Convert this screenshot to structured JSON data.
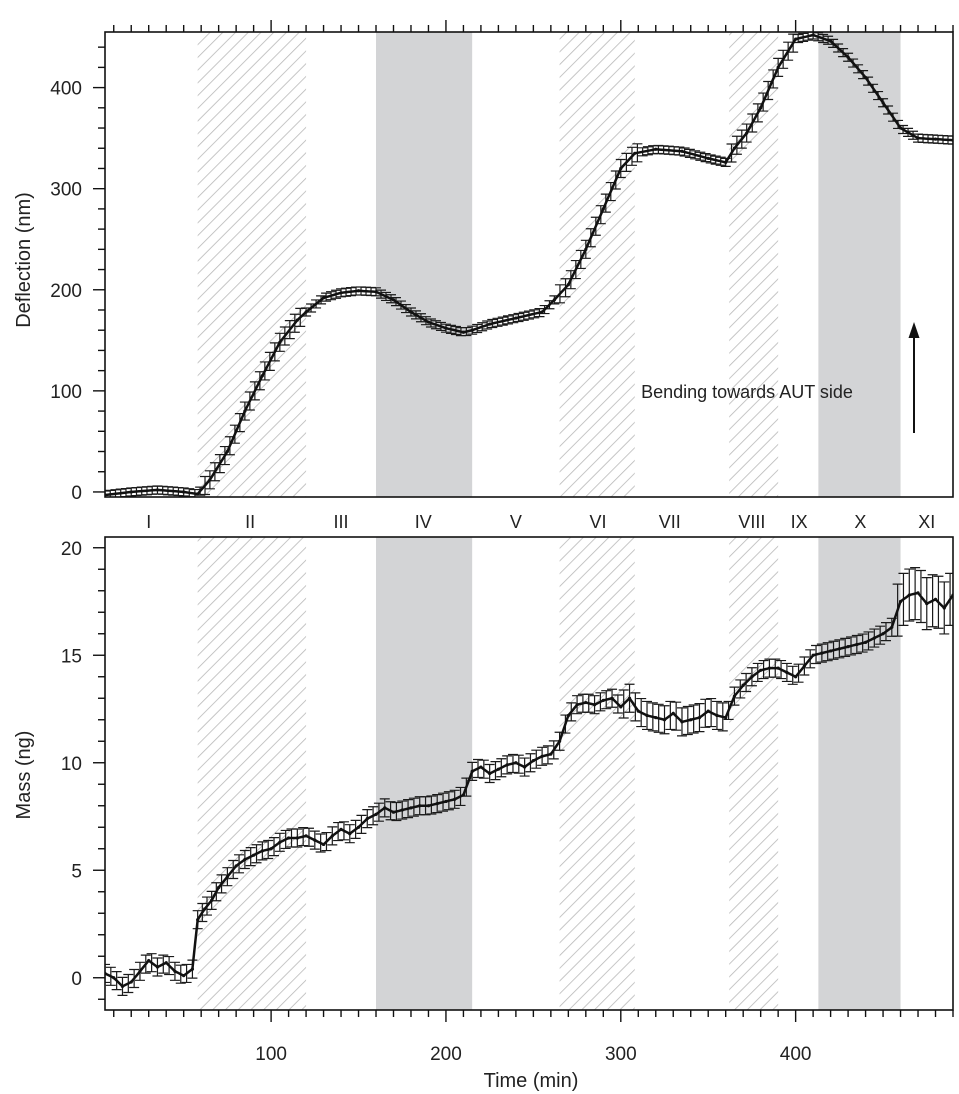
{
  "chart_data": [
    {
      "type": "line",
      "ylabel": "Deflection (nm)",
      "xlim": [
        5,
        490
      ],
      "ylim": [
        -5,
        455
      ],
      "yticks": [
        0,
        100,
        200,
        300,
        400
      ],
      "error_bars": true,
      "regions": [
        {
          "start": 58,
          "end": 120,
          "style": "hatched"
        },
        {
          "start": 160,
          "end": 215,
          "style": "gray"
        },
        {
          "start": 265,
          "end": 308,
          "style": "hatched"
        },
        {
          "start": 362,
          "end": 390,
          "style": "hatched"
        },
        {
          "start": 413,
          "end": 460,
          "style": "gray"
        }
      ],
      "annotation": "Bending towards AUT side",
      "series": [
        {
          "x": [
            5,
            20,
            35,
            50,
            58,
            65,
            75,
            85,
            95,
            105,
            115,
            120,
            130,
            140,
            150,
            160,
            170,
            180,
            190,
            200,
            210,
            215,
            225,
            240,
            255,
            262,
            270,
            280,
            290,
            300,
            308,
            320,
            335,
            350,
            360,
            365,
            372,
            380,
            390,
            400,
            410,
            420,
            430,
            440,
            450,
            460,
            470,
            480,
            490
          ],
          "y": [
            -3,
            0,
            2,
            0,
            -2,
            12,
            40,
            80,
            115,
            148,
            170,
            178,
            192,
            197,
            199,
            198,
            190,
            178,
            168,
            162,
            158,
            160,
            166,
            172,
            178,
            190,
            205,
            240,
            280,
            320,
            335,
            339,
            337,
            330,
            326,
            340,
            355,
            380,
            420,
            448,
            452,
            446,
            430,
            410,
            385,
            360,
            350,
            349,
            348
          ]
        }
      ]
    },
    {
      "type": "line",
      "ylabel": "Mass (ng)",
      "xlabel": "Time (min)",
      "xlim": [
        5,
        490
      ],
      "ylim": [
        -1.5,
        20.5
      ],
      "xticks": [
        100,
        200,
        300,
        400
      ],
      "yticks": [
        0,
        5,
        10,
        15,
        20
      ],
      "error_bars": true,
      "phase_labels": [
        "I",
        "II",
        "III",
        "IV",
        "V",
        "VI",
        "VII",
        "VIII",
        "IX",
        "X",
        "XI"
      ],
      "series": [
        {
          "x": [
            5,
            10,
            15,
            20,
            25,
            30,
            35,
            40,
            45,
            50,
            55,
            58,
            62,
            66,
            70,
            75,
            80,
            85,
            90,
            95,
            100,
            105,
            110,
            115,
            120,
            125,
            130,
            135,
            140,
            145,
            150,
            155,
            160,
            165,
            170,
            175,
            180,
            185,
            190,
            195,
            200,
            205,
            210,
            215,
            220,
            225,
            230,
            235,
            240,
            245,
            250,
            255,
            260,
            265,
            270,
            275,
            280,
            285,
            290,
            295,
            300,
            305,
            310,
            315,
            320,
            325,
            330,
            335,
            340,
            345,
            350,
            355,
            360,
            365,
            370,
            375,
            380,
            385,
            390,
            395,
            400,
            405,
            410,
            415,
            420,
            425,
            430,
            435,
            440,
            445,
            450,
            455,
            460,
            465,
            470,
            475,
            480,
            485,
            490
          ],
          "y": [
            0.2,
            0.0,
            -0.4,
            -0.2,
            0.3,
            0.8,
            0.5,
            0.7,
            0.3,
            0.1,
            0.4,
            2.7,
            3.2,
            3.6,
            4.2,
            4.7,
            5.2,
            5.5,
            5.7,
            5.9,
            6.0,
            6.3,
            6.5,
            6.5,
            6.6,
            6.4,
            6.2,
            6.6,
            6.9,
            6.7,
            7.0,
            7.4,
            7.6,
            7.9,
            7.7,
            7.8,
            7.9,
            8.0,
            8.0,
            8.1,
            8.2,
            8.3,
            8.5,
            9.6,
            9.8,
            9.5,
            9.7,
            9.9,
            10.0,
            9.8,
            10.1,
            10.3,
            10.4,
            11.0,
            12.2,
            12.7,
            12.8,
            12.7,
            12.9,
            13.0,
            12.6,
            13.0,
            12.4,
            12.2,
            12.1,
            12.0,
            12.3,
            11.9,
            12.0,
            12.1,
            12.4,
            12.2,
            12.1,
            13.1,
            13.6,
            14.0,
            14.3,
            14.4,
            14.4,
            14.2,
            14.0,
            14.5,
            15.0,
            15.1,
            15.2,
            15.3,
            15.4,
            15.5,
            15.6,
            15.8,
            16.0,
            16.3,
            17.5,
            17.8,
            17.9,
            17.4,
            17.6,
            17.2,
            17.8
          ]
        }
      ]
    }
  ]
}
